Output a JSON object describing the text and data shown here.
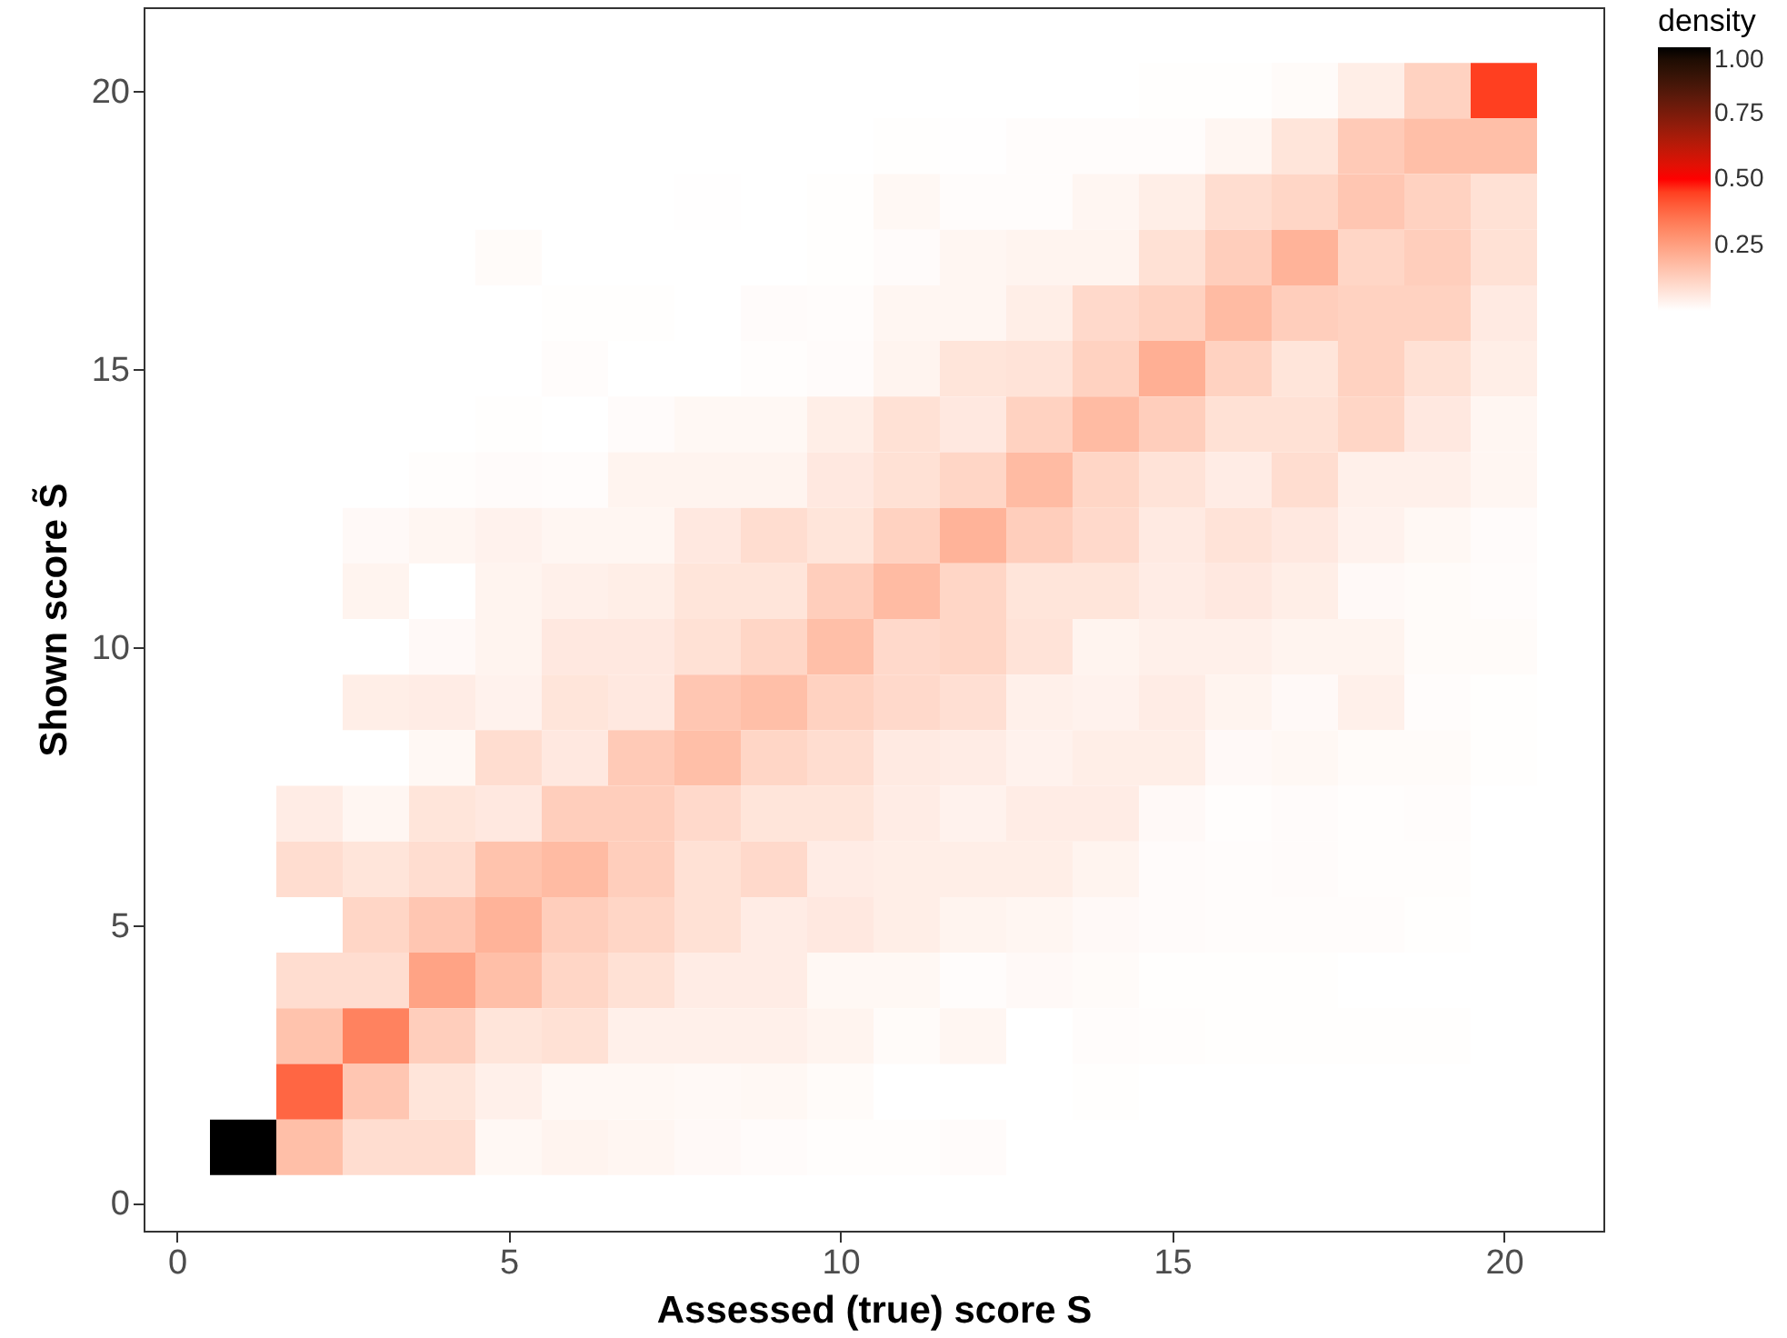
{
  "chart_data": {
    "type": "heatmap",
    "xlabel": "Assessed (true) score S",
    "ylabel": "Shown score S̃",
    "clabel": "density",
    "x": [
      1,
      2,
      3,
      4,
      5,
      6,
      7,
      8,
      9,
      10,
      11,
      12,
      13,
      14,
      15,
      16,
      17,
      18,
      19,
      20
    ],
    "y": [
      20,
      19,
      18,
      17,
      16,
      15,
      14,
      13,
      12,
      11,
      10,
      9,
      8,
      7,
      6,
      5,
      4,
      3,
      2,
      1
    ],
    "xlim": [
      -0.5,
      21.5
    ],
    "ylim": [
      -0.5,
      21.5
    ],
    "xticks": [
      0,
      5,
      10,
      15,
      20
    ],
    "yticks": [
      0,
      5,
      10,
      15,
      20
    ],
    "clim": [
      0,
      1
    ],
    "cticks": [
      {
        "value": 0.25,
        "label": "0.25"
      },
      {
        "value": 0.5,
        "label": "0.50"
      },
      {
        "value": 0.75,
        "label": "0.75"
      },
      {
        "value": 1,
        "label": "1.00"
      }
    ],
    "grid": false,
    "cells": [
      [
        null,
        null,
        null,
        null,
        null,
        null,
        null,
        null,
        null,
        null,
        null,
        null,
        null,
        null,
        0.003,
        0.003,
        0.012,
        0.045,
        0.12,
        0.45
      ],
      [
        null,
        null,
        null,
        null,
        null,
        null,
        null,
        null,
        null,
        null,
        0.003,
        0.002,
        0.008,
        0.008,
        0.008,
        0.025,
        0.07,
        0.14,
        0.17,
        0.17
      ],
      [
        null,
        null,
        null,
        null,
        null,
        null,
        null,
        0.002,
        null,
        0.003,
        0.02,
        0.008,
        0.008,
        0.025,
        0.045,
        0.09,
        0.11,
        0.15,
        0.12,
        0.08
      ],
      [
        null,
        null,
        null,
        null,
        0.012,
        null,
        null,
        null,
        null,
        0.003,
        0.01,
        0.025,
        0.03,
        0.03,
        0.08,
        0.13,
        0.2,
        0.11,
        0.13,
        0.08
      ],
      [
        null,
        null,
        null,
        null,
        null,
        0.004,
        0.004,
        null,
        0.01,
        0.008,
        0.025,
        0.025,
        0.045,
        0.1,
        0.12,
        0.18,
        0.13,
        0.12,
        0.12,
        0.055
      ],
      [
        null,
        null,
        null,
        null,
        null,
        0.007,
        null,
        null,
        0.006,
        0.01,
        0.03,
        0.07,
        0.075,
        0.12,
        0.21,
        0.12,
        0.07,
        0.12,
        0.08,
        0.045
      ],
      [
        null,
        null,
        null,
        null,
        0.004,
        null,
        0.01,
        0.02,
        0.02,
        0.045,
        0.08,
        0.06,
        0.12,
        0.18,
        0.13,
        0.08,
        0.08,
        0.11,
        0.06,
        0.025
      ],
      [
        null,
        null,
        null,
        0.005,
        0.01,
        0.008,
        0.03,
        0.03,
        0.03,
        0.06,
        0.08,
        0.11,
        0.18,
        0.11,
        0.075,
        0.05,
        0.09,
        0.04,
        0.04,
        0.025
      ],
      [
        null,
        null,
        0.015,
        0.025,
        0.035,
        0.025,
        0.025,
        0.06,
        0.09,
        0.07,
        0.12,
        0.2,
        0.13,
        0.1,
        0.055,
        0.075,
        0.06,
        0.035,
        0.02,
        0.01
      ],
      [
        null,
        null,
        0.03,
        null,
        0.03,
        0.04,
        0.045,
        0.07,
        0.07,
        0.13,
        0.18,
        0.11,
        0.07,
        0.07,
        0.05,
        0.06,
        0.045,
        0.015,
        0.012,
        0.008
      ],
      [
        null,
        null,
        null,
        0.015,
        0.03,
        0.06,
        0.06,
        0.08,
        0.11,
        0.17,
        0.1,
        0.11,
        0.075,
        0.03,
        0.04,
        0.04,
        0.03,
        0.03,
        0.012,
        0.012
      ],
      [
        null,
        null,
        0.045,
        0.05,
        0.035,
        0.07,
        0.06,
        0.15,
        0.17,
        0.12,
        0.1,
        0.085,
        0.04,
        0.035,
        0.05,
        0.03,
        0.015,
        0.04,
        0.007,
        0.004
      ],
      [
        null,
        null,
        null,
        0.02,
        0.09,
        0.06,
        0.14,
        0.17,
        0.11,
        0.09,
        0.055,
        0.05,
        0.035,
        0.045,
        0.045,
        0.015,
        0.02,
        0.012,
        0.012,
        0.003
      ],
      [
        null,
        0.05,
        0.025,
        0.07,
        0.06,
        0.13,
        0.13,
        0.1,
        0.07,
        0.07,
        0.05,
        0.035,
        0.05,
        0.05,
        0.015,
        0.006,
        0.01,
        0.006,
        0.008,
        null
      ],
      [
        null,
        0.09,
        0.07,
        0.09,
        0.16,
        0.18,
        0.13,
        0.08,
        0.1,
        0.05,
        0.045,
        0.045,
        0.045,
        0.03,
        0.01,
        0.008,
        0.01,
        0.006,
        0.006,
        null
      ],
      [
        null,
        null,
        0.11,
        0.15,
        0.2,
        0.13,
        0.11,
        0.08,
        0.05,
        0.06,
        0.045,
        0.03,
        0.025,
        0.015,
        0.01,
        0.008,
        0.008,
        0.007,
        0.004,
        null
      ],
      [
        null,
        0.09,
        0.09,
        0.24,
        0.17,
        0.11,
        0.08,
        0.05,
        0.05,
        0.02,
        0.02,
        0.008,
        0.015,
        0.012,
        0.004,
        0.003,
        0.003,
        null,
        null,
        null
      ],
      [
        null,
        0.16,
        0.32,
        0.13,
        0.07,
        0.08,
        0.04,
        0.04,
        0.04,
        0.03,
        0.012,
        0.025,
        null,
        0.008,
        0.005,
        0.004,
        0.004,
        0.004,
        0.003,
        null
      ],
      [
        null,
        0.38,
        0.15,
        0.07,
        0.04,
        0.02,
        0.02,
        0.017,
        0.02,
        0.012,
        null,
        null,
        null,
        0.004,
        null,
        null,
        null,
        null,
        null,
        null
      ],
      [
        1,
        0.17,
        0.09,
        0.09,
        0.02,
        0.03,
        0.025,
        0.015,
        0.01,
        0.006,
        0.005,
        0.01,
        null,
        null,
        null,
        null,
        null,
        null,
        null,
        null
      ]
    ]
  }
}
